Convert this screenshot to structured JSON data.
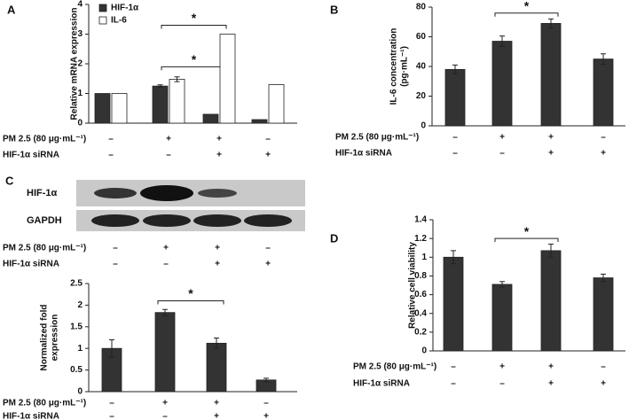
{
  "chart_data": [
    {
      "type": "grouped-bar",
      "panel": "A",
      "ylabel": [
        "Relative mRNA expression"
      ],
      "series": [
        {
          "name": "HIF-1α",
          "color": "#333333",
          "values": [
            1,
            1.25,
            0.3,
            0.12
          ],
          "errors": [
            null,
            0.04,
            null,
            null
          ]
        },
        {
          "name": "IL-6",
          "color": "#ffffff",
          "values": [
            1,
            1.48,
            3.0,
            1.3
          ],
          "errors": [
            null,
            0.08,
            null,
            null
          ]
        }
      ],
      "ylim": [
        0,
        4
      ],
      "yticks": [
        0,
        1,
        2,
        3,
        4
      ],
      "annotations": [
        {
          "text": "*",
          "from": 1,
          "to": 2,
          "y": 1.9
        },
        {
          "text": "*",
          "from": 1,
          "to": 2,
          "y": 3.3
        }
      ],
      "treatments": [
        {
          "label": "PM 2.5 (80 μg·mL⁻¹)",
          "signs": [
            "–",
            "+",
            "+",
            "–"
          ]
        },
        {
          "label": "HIF-1α siRNA",
          "signs": [
            "–",
            "–",
            "+",
            "+"
          ]
        }
      ]
    },
    {
      "type": "bar",
      "panel": "B",
      "ylabel": [
        "IL-6 concentration",
        "(pg·mL⁻¹)"
      ],
      "color": "#333333",
      "values": [
        38,
        57,
        69,
        45
      ],
      "errors": [
        3,
        3.5,
        3,
        3.5
      ],
      "ylim": [
        0,
        80
      ],
      "yticks": [
        0,
        20,
        40,
        60,
        80
      ],
      "annotations": [
        {
          "text": "*",
          "from": 1,
          "to": 2,
          "y": 76
        }
      ],
      "treatments": [
        {
          "label": "PM 2.5 (80 μg·mL⁻¹)",
          "signs": [
            "–",
            "+",
            "+",
            "–"
          ]
        },
        {
          "label": "HIF-1α siRNA",
          "signs": [
            "–",
            "–",
            "+",
            "+"
          ]
        }
      ]
    },
    {
      "type": "blot",
      "panel": "C",
      "bands": [
        "HIF-1α",
        "GAPDH"
      ],
      "treatments": [
        {
          "label": "PM 2.5 (80 μg·mL⁻¹)",
          "signs": [
            "–",
            "+",
            "+",
            "–"
          ]
        },
        {
          "label": "HIF-1α siRNA",
          "signs": [
            "–",
            "–",
            "+",
            "+"
          ]
        }
      ]
    },
    {
      "type": "bar",
      "ylabel": [
        "Normalized fold",
        "expression"
      ],
      "color": "#333333",
      "values": [
        1,
        1.83,
        1.12,
        0.27
      ],
      "errors": [
        0.2,
        0.07,
        0.12,
        0.04
      ],
      "ylim": [
        0,
        2.5
      ],
      "yticks": [
        0,
        0.5,
        1,
        1.5,
        2,
        2.5
      ],
      "annotations": [
        {
          "text": "*",
          "from": 1,
          "to": 2,
          "y": 2.1
        }
      ],
      "treatments": [
        {
          "label": "PM 2.5 (80 μg·mL⁻¹)",
          "signs": [
            "–",
            "+",
            "+",
            "–"
          ]
        },
        {
          "label": "HIF-1α siRNA",
          "signs": [
            "–",
            "–",
            "+",
            "+"
          ]
        }
      ]
    },
    {
      "type": "bar",
      "panel": "D",
      "ylabel": [
        "Relative cell viability"
      ],
      "color": "#333333",
      "values": [
        1.0,
        0.71,
        1.07,
        0.78
      ],
      "errors": [
        0.07,
        0.03,
        0.07,
        0.04
      ],
      "ylim": [
        0,
        1.4
      ],
      "yticks": [
        0,
        0.2,
        0.4,
        0.6,
        0.8,
        1,
        1.2,
        1.4
      ],
      "annotations": [
        {
          "text": "*",
          "from": 1,
          "to": 2,
          "y": 1.2
        }
      ],
      "treatments": [
        {
          "label": "PM 2.5 (80 μg·mL⁻¹)",
          "signs": [
            "–",
            "+",
            "+",
            "–"
          ]
        },
        {
          "label": "HIF-1α siRNA",
          "signs": [
            "–",
            "–",
            "+",
            "+"
          ]
        }
      ]
    }
  ]
}
